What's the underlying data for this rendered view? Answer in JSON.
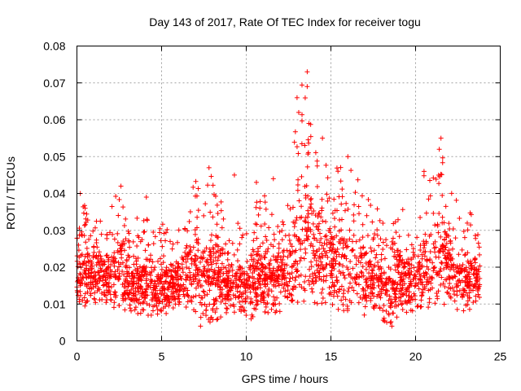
{
  "chart_data": {
    "type": "scatter",
    "title": "Day 143 of 2017, Rate Of TEC Index for receiver togu",
    "xlabel": "GPS time / hours",
    "ylabel": "ROTI / TECUs",
    "xlim": [
      0,
      25
    ],
    "ylim": [
      0,
      0.08
    ],
    "x_ticks": [
      "0",
      "5",
      "10",
      "15",
      "20",
      "25"
    ],
    "y_ticks": [
      "0",
      "0.01",
      "0.02",
      "0.03",
      "0.04",
      "0.05",
      "0.06",
      "0.07",
      "0.08"
    ],
    "grid": true,
    "marker": "+",
    "color": "#ff0000",
    "envelope": [
      {
        "x": 0.0,
        "lo": 0.009,
        "hi": 0.041
      },
      {
        "x": 1.0,
        "lo": 0.01,
        "hi": 0.032
      },
      {
        "x": 2.0,
        "lo": 0.009,
        "hi": 0.036
      },
      {
        "x": 2.5,
        "lo": 0.009,
        "hi": 0.042
      },
      {
        "x": 3.0,
        "lo": 0.008,
        "hi": 0.03
      },
      {
        "x": 4.0,
        "lo": 0.007,
        "hi": 0.039
      },
      {
        "x": 4.5,
        "lo": 0.006,
        "hi": 0.03
      },
      {
        "x": 5.0,
        "lo": 0.006,
        "hi": 0.033
      },
      {
        "x": 6.0,
        "lo": 0.01,
        "hi": 0.03
      },
      {
        "x": 7.0,
        "lo": 0.008,
        "hi": 0.044
      },
      {
        "x": 7.5,
        "lo": 0.005,
        "hi": 0.04
      },
      {
        "x": 8.0,
        "lo": 0.005,
        "hi": 0.047
      },
      {
        "x": 9.0,
        "lo": 0.008,
        "hi": 0.03
      },
      {
        "x": 10.0,
        "lo": 0.006,
        "hi": 0.035
      },
      {
        "x": 10.5,
        "lo": 0.006,
        "hi": 0.043
      },
      {
        "x": 11.0,
        "lo": 0.007,
        "hi": 0.04
      },
      {
        "x": 12.0,
        "lo": 0.008,
        "hi": 0.035
      },
      {
        "x": 12.5,
        "lo": 0.008,
        "hi": 0.038
      },
      {
        "x": 13.0,
        "lo": 0.008,
        "hi": 0.066
      },
      {
        "x": 13.5,
        "lo": 0.009,
        "hi": 0.073
      },
      {
        "x": 14.0,
        "lo": 0.01,
        "hi": 0.055
      },
      {
        "x": 15.0,
        "lo": 0.009,
        "hi": 0.046
      },
      {
        "x": 16.0,
        "lo": 0.008,
        "hi": 0.05
      },
      {
        "x": 17.0,
        "lo": 0.007,
        "hi": 0.04
      },
      {
        "x": 18.0,
        "lo": 0.006,
        "hi": 0.035
      },
      {
        "x": 18.5,
        "lo": 0.004,
        "hi": 0.03
      },
      {
        "x": 19.0,
        "lo": 0.007,
        "hi": 0.038
      },
      {
        "x": 20.0,
        "lo": 0.008,
        "hi": 0.03
      },
      {
        "x": 20.5,
        "lo": 0.009,
        "hi": 0.046
      },
      {
        "x": 21.0,
        "lo": 0.009,
        "hi": 0.044
      },
      {
        "x": 21.5,
        "lo": 0.01,
        "hi": 0.055
      },
      {
        "x": 22.0,
        "lo": 0.009,
        "hi": 0.042
      },
      {
        "x": 23.0,
        "lo": 0.008,
        "hi": 0.033
      },
      {
        "x": 23.5,
        "lo": 0.008,
        "hi": 0.037
      },
      {
        "x": 23.8,
        "lo": 0.01,
        "hi": 0.025
      }
    ],
    "peaks": [
      {
        "x": 0.2,
        "y": 0.04
      },
      {
        "x": 2.6,
        "y": 0.042
      },
      {
        "x": 4.1,
        "y": 0.039
      },
      {
        "x": 7.8,
        "y": 0.047
      },
      {
        "x": 9.3,
        "y": 0.045
      },
      {
        "x": 10.6,
        "y": 0.043
      },
      {
        "x": 11.6,
        "y": 0.044
      },
      {
        "x": 13.0,
        "y": 0.066
      },
      {
        "x": 13.1,
        "y": 0.062
      },
      {
        "x": 13.6,
        "y": 0.073
      },
      {
        "x": 13.6,
        "y": 0.069
      },
      {
        "x": 13.7,
        "y": 0.059
      },
      {
        "x": 14.5,
        "y": 0.055
      },
      {
        "x": 16.0,
        "y": 0.05
      },
      {
        "x": 20.5,
        "y": 0.046
      },
      {
        "x": 21.5,
        "y": 0.055
      },
      {
        "x": 21.4,
        "y": 0.052
      },
      {
        "x": 18.6,
        "y": 0.004
      },
      {
        "x": 7.3,
        "y": 0.004
      }
    ]
  }
}
